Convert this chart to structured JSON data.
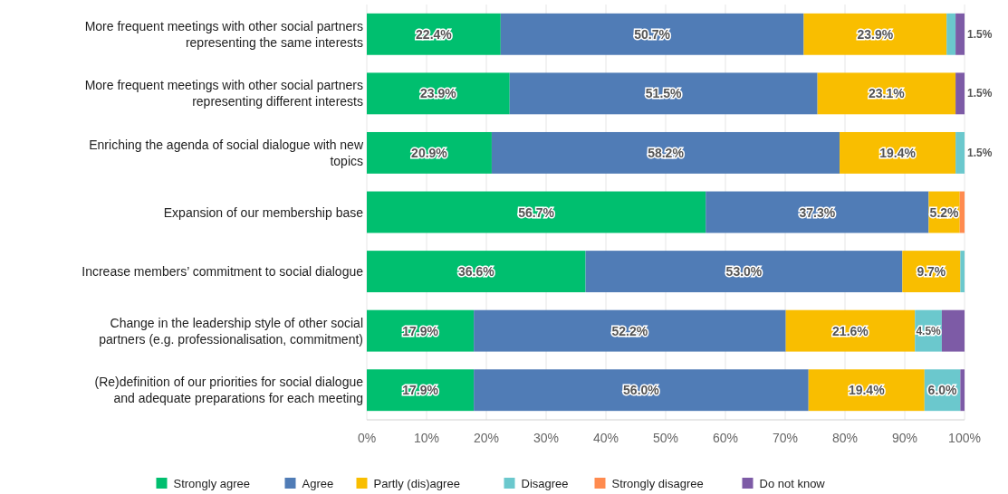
{
  "chart_data": {
    "type": "bar",
    "orientation": "horizontal",
    "stacked": true,
    "categories": [
      "More frequent meetings with other social partners representing the same interests",
      "More frequent meetings with other social partners representing different interests",
      "Enriching the agenda of social dialogue with new topics",
      "Expansion of our membership base",
      "Increase members’ commitment to social dialogue",
      "Change in the leadership style of other social partners (e.g. professionalisation, commitment)",
      "(Re)definition of our priorities for social dialogue and adequate preparations for each meeting"
    ],
    "series": [
      {
        "name": "Strongly agree",
        "color": "#00bf6f",
        "values": [
          22.4,
          23.9,
          20.9,
          56.7,
          36.6,
          17.9,
          17.9
        ],
        "value_labels": [
          "22.4%",
          "23.9%",
          "20.9%",
          "56.7%",
          "36.6%",
          "17.9%",
          "17.9%"
        ]
      },
      {
        "name": "Agree",
        "color": "#507cb6",
        "values": [
          50.7,
          51.5,
          58.2,
          37.3,
          53.0,
          52.2,
          56.0
        ],
        "value_labels": [
          "50.7%",
          "51.5%",
          "58.2%",
          "37.3%",
          "53.0%",
          "52.2%",
          "56.0%"
        ]
      },
      {
        "name": "Partly (dis)agree",
        "color": "#f9be00",
        "values": [
          23.9,
          23.1,
          19.4,
          5.2,
          9.7,
          21.6,
          19.4
        ],
        "value_labels": [
          "23.9%",
          "23.1%",
          "19.4%",
          "5.2%",
          "9.7%",
          "21.6%",
          "19.4%"
        ]
      },
      {
        "name": "Disagree",
        "color": "#6bc8cd",
        "values": [
          1.5,
          0,
          1.5,
          0,
          0.7,
          4.5,
          6.0
        ],
        "value_labels": [
          "1.5%",
          null,
          "1.5%",
          null,
          null,
          "4.5%",
          "6.0%"
        ]
      },
      {
        "name": "Strongly disagree",
        "color": "#ff8b4f",
        "values": [
          0,
          0,
          0,
          0.8,
          0,
          0,
          0
        ],
        "value_labels": [
          null,
          null,
          null,
          null,
          null,
          null,
          null
        ]
      },
      {
        "name": "Do not know",
        "color": "#7d5ba6",
        "values": [
          1.5,
          1.5,
          0,
          0,
          0,
          3.8,
          0.7
        ],
        "value_labels": [
          null,
          "1.5%",
          null,
          null,
          null,
          null,
          null
        ]
      }
    ],
    "xlim": [
      0,
      100
    ],
    "xticks": [
      {
        "value": 0,
        "label": "0%"
      },
      {
        "value": 10,
        "label": "10%"
      },
      {
        "value": 20,
        "label": "20%"
      },
      {
        "value": 30,
        "label": "30%"
      },
      {
        "value": 40,
        "label": "40%"
      },
      {
        "value": 50,
        "label": "50%"
      },
      {
        "value": 60,
        "label": "60%"
      },
      {
        "value": 70,
        "label": "70%"
      },
      {
        "value": 80,
        "label": "80%"
      },
      {
        "value": 90,
        "label": "90%"
      },
      {
        "value": 100,
        "label": "100%"
      }
    ],
    "grid": "x",
    "legend": "bottom"
  }
}
